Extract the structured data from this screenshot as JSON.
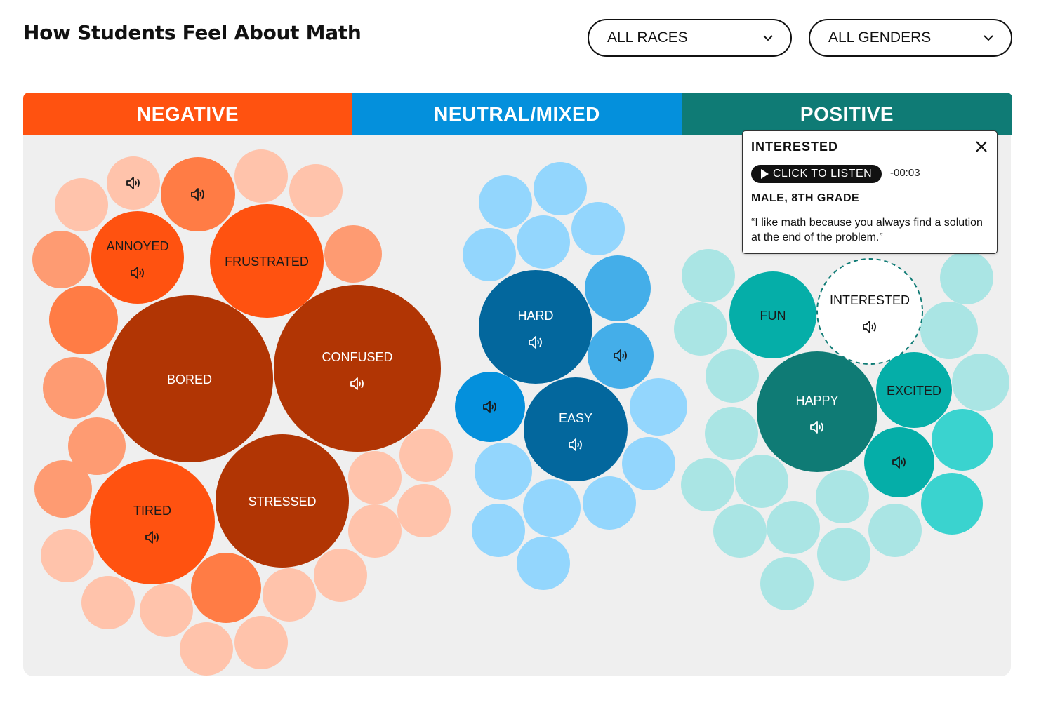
{
  "header": {
    "title": "How Students Feel About Math"
  },
  "filters": {
    "race": {
      "selected": "ALL RACES"
    },
    "gender": {
      "selected": "ALL GENDERS"
    }
  },
  "colors": {
    "negative": "#ff5210",
    "neutral": "#0490dc",
    "positive": "#0f7b75",
    "panel": "#efefef"
  },
  "tooltip": {
    "title": "INTERESTED",
    "listen_label": "CLICK TO LISTEN",
    "time": "-00:03",
    "demographic": "MALE, 8TH GRADE",
    "quote": "“I like math because you always find a solution at the end of the problem.”"
  },
  "chart_data": {
    "type": "bubble",
    "title": "How Students Feel About Math",
    "categories": [
      "NEGATIVE",
      "NEUTRAL/MIXED",
      "POSITIVE"
    ],
    "series": [
      {
        "name": "NEGATIVE",
        "bubbles": [
          {
            "label": "BORED",
            "size": 5,
            "color": "#b13504",
            "audio": false
          },
          {
            "label": "CONFUSED",
            "size": 5,
            "color": "#b13504",
            "audio": true
          },
          {
            "label": "STRESSED",
            "size": 4,
            "color": "#b13504",
            "audio": false
          },
          {
            "label": "TIRED",
            "size": 4,
            "color": "#ff5210",
            "audio": true
          },
          {
            "label": "FRUSTRATED",
            "size": 3,
            "color": "#ff5210",
            "audio": false
          },
          {
            "label": "ANNOYED",
            "size": 3,
            "color": "#ff5210",
            "audio": true
          }
        ]
      },
      {
        "name": "NEUTRAL/MIXED",
        "bubbles": [
          {
            "label": "HARD",
            "size": 4,
            "color": "#03679d",
            "audio": true
          },
          {
            "label": "EASY",
            "size": 4,
            "color": "#03679d",
            "audio": true
          }
        ]
      },
      {
        "name": "POSITIVE",
        "bubbles": [
          {
            "label": "HAPPY",
            "size": 4,
            "color": "#0f7b75",
            "audio": true
          },
          {
            "label": "FUN",
            "size": 3,
            "color": "#05aea8",
            "audio": false
          },
          {
            "label": "INTERESTED",
            "size": 3,
            "color": "#ffffff",
            "audio": true,
            "selected": true
          },
          {
            "label": "EXCITED",
            "size": 3,
            "color": "#05aea8",
            "audio": false
          }
        ]
      }
    ]
  }
}
